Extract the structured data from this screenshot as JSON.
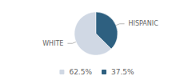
{
  "chart_data": {
    "type": "pie",
    "categories": [
      "WHITE",
      "HISPANIC"
    ],
    "values": [
      62.5,
      37.5
    ],
    "value_labels": [
      "62.5%",
      "37.5%"
    ],
    "colors": [
      "#d0d8e4",
      "#2e6080"
    ],
    "legend": "bottom"
  }
}
